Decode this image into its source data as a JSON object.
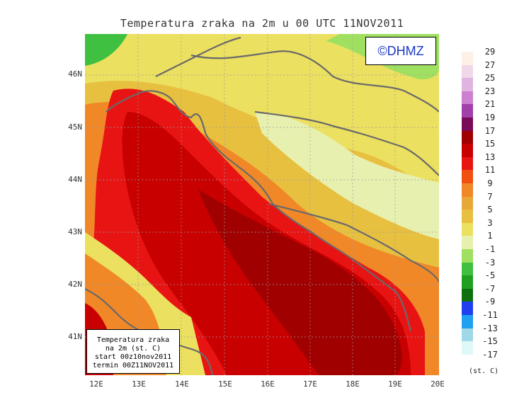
{
  "title": "Temperatura zraka na 2m u 00 UTC 11NOV2011",
  "copyright": "©DHMZ",
  "info_box": {
    "line1": "Temperatura zraka",
    "line2": "na 2m (st. C)",
    "line3": "start 00z10nov2011",
    "line4": "termin 00Z11NOV2011"
  },
  "lat_labels": [
    "46N",
    "45N",
    "44N",
    "43N",
    "42N",
    "41N"
  ],
  "lon_labels": [
    "12E",
    "13E",
    "14E",
    "15E",
    "16E",
    "17E",
    "18E",
    "19E",
    "20E"
  ],
  "legend": {
    "unit": "(st. C)",
    "levels": [
      {
        "value": "29",
        "color": "#fdf0e6"
      },
      {
        "value": "27",
        "color": "#f0d8e8"
      },
      {
        "value": "25",
        "color": "#e0b4e0"
      },
      {
        "value": "23",
        "color": "#cc80d0"
      },
      {
        "value": "21",
        "color": "#a040a8"
      },
      {
        "value": "19",
        "color": "#7a0a5a"
      },
      {
        "value": "17",
        "color": "#a00000"
      },
      {
        "value": "15",
        "color": "#c80000"
      },
      {
        "value": "13",
        "color": "#e81414"
      },
      {
        "value": "11",
        "color": "#f25010"
      },
      {
        "value": "9",
        "color": "#f08828"
      },
      {
        "value": "7",
        "color": "#e8a838"
      },
      {
        "value": "5",
        "color": "#e8c040"
      },
      {
        "value": "3",
        "color": "#ece060"
      },
      {
        "value": "1",
        "color": "#e8f0b0"
      },
      {
        "value": "-1",
        "color": "#a0e060"
      },
      {
        "value": "-3",
        "color": "#40c040"
      },
      {
        "value": "-5",
        "color": "#20a020"
      },
      {
        "value": "-7",
        "color": "#107010"
      },
      {
        "value": "-9",
        "color": "#2040f0"
      },
      {
        "value": "-11",
        "color": "#20a0f0"
      },
      {
        "value": "-13",
        "color": "#a0d8e8"
      },
      {
        "value": "-15",
        "color": "#e0f8f8"
      },
      {
        "value": "-17",
        "color": "#ffffff"
      }
    ]
  }
}
